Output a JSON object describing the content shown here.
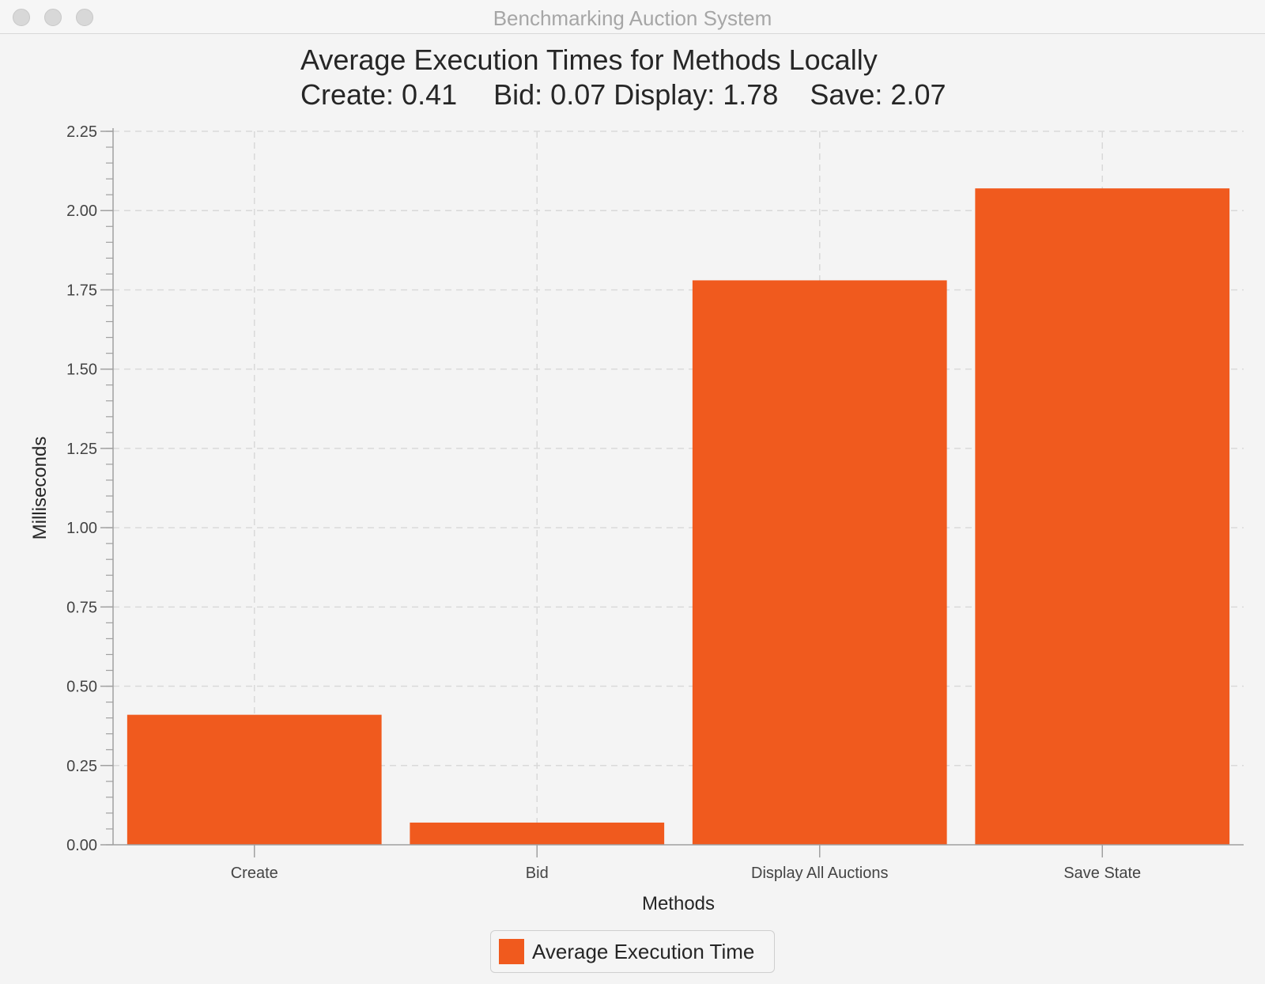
{
  "window": {
    "title": "Benchmarking Auction System"
  },
  "colors": {
    "bar": "#f05a1e",
    "grid": "#d9d9d9",
    "axis": "#a0a0a0"
  },
  "chart_data": {
    "type": "bar",
    "title": "Average Execution Times for Methods Locally",
    "subtitle": [
      "Create: 0.41",
      "Bid: 0.07 Display: 1.78",
      "Save: 2.07"
    ],
    "categories": [
      "Create",
      "Bid",
      "Display All Auctions",
      "Save State"
    ],
    "series": [
      {
        "name": "Average Execution Time",
        "values": [
          0.41,
          0.07,
          1.78,
          2.07
        ]
      }
    ],
    "xlabel": "Methods",
    "ylabel": "Milliseconds",
    "ylim": [
      0,
      2.25
    ],
    "yticks": [
      "0.00",
      "0.25",
      "0.50",
      "0.75",
      "1.00",
      "1.25",
      "1.50",
      "1.75",
      "2.00",
      "2.25"
    ],
    "grid": true,
    "legend_position": "bottom"
  }
}
